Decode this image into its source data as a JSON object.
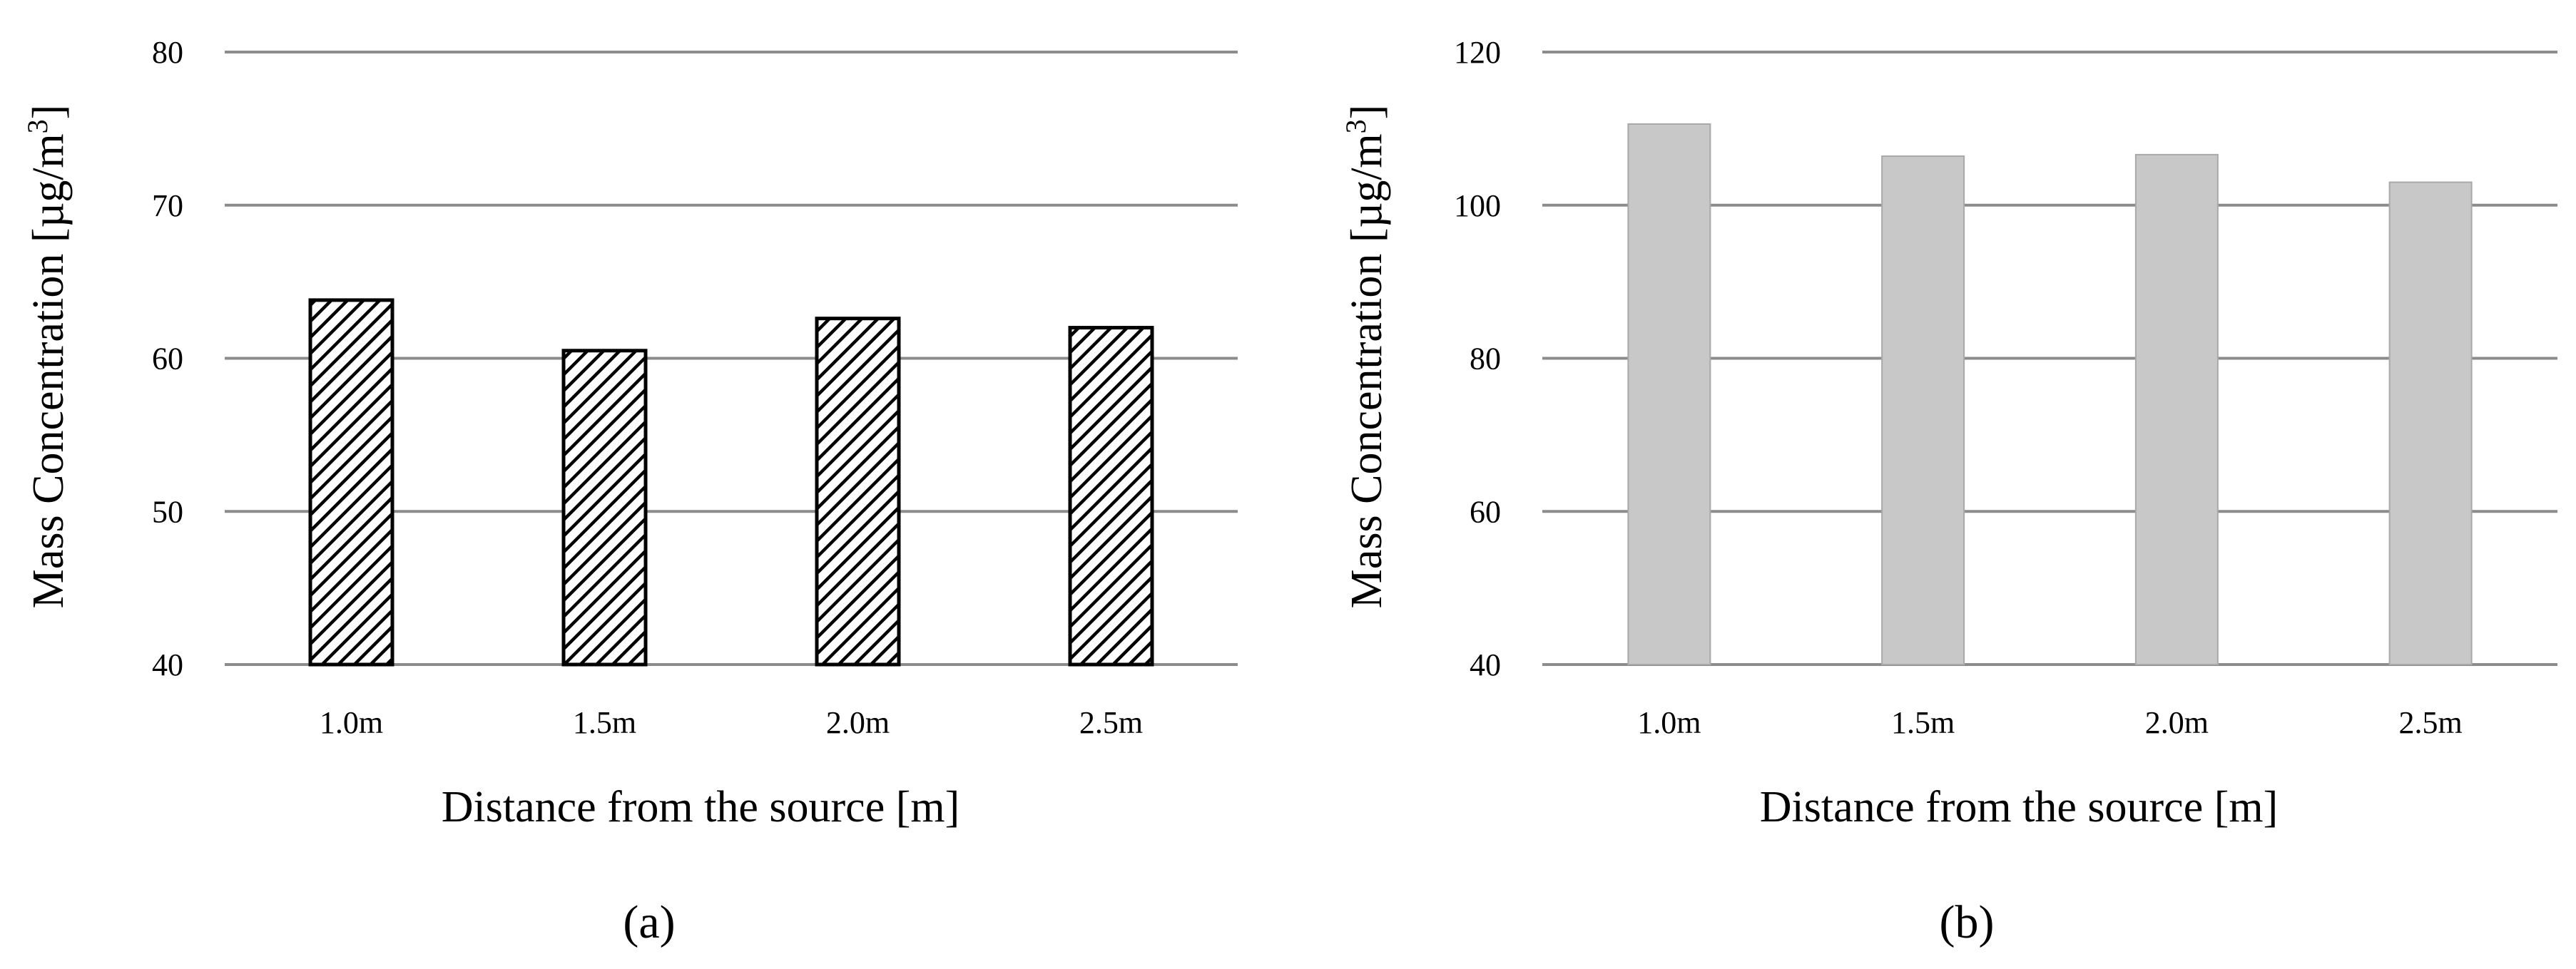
{
  "chart_data": [
    {
      "type": "bar",
      "panel": "a",
      "caption": "(a)",
      "categories": [
        "1.0m",
        "1.5m",
        "2.0m",
        "2.5m"
      ],
      "values": [
        63.8,
        60.5,
        62.6,
        62.0
      ],
      "xlabel": "Distance from the source [m]",
      "ylabel": "Mass Concentration [µg/m3]",
      "ylabel_main": "Mass Concentration [µg/m",
      "ylabel_sup": "3",
      "ylabel_end": "]",
      "ylim": [
        40,
        80
      ],
      "yticks": [
        40,
        50,
        60,
        70,
        80
      ],
      "grid": true,
      "bar_fill": "diagonal-hatch",
      "bar_color": "#000000",
      "grid_color": "#8c8c8c"
    },
    {
      "type": "bar",
      "panel": "b",
      "caption": "(b)",
      "categories": [
        "1.0m",
        "1.5m",
        "2.0m",
        "2.5m"
      ],
      "values": [
        110.6,
        106.4,
        106.6,
        103.0
      ],
      "xlabel": "Distance from the source [m]",
      "ylabel": "Mass Concentration [µg/m3]",
      "ylabel_main": "Mass Concentration [µg/m",
      "ylabel_sup": "3",
      "ylabel_end": "]",
      "ylim": [
        40,
        120
      ],
      "yticks": [
        40,
        60,
        80,
        100,
        120
      ],
      "grid": true,
      "bar_fill": "solid",
      "bar_color": "#c8c8c8",
      "grid_color": "#8c8c8c"
    }
  ]
}
